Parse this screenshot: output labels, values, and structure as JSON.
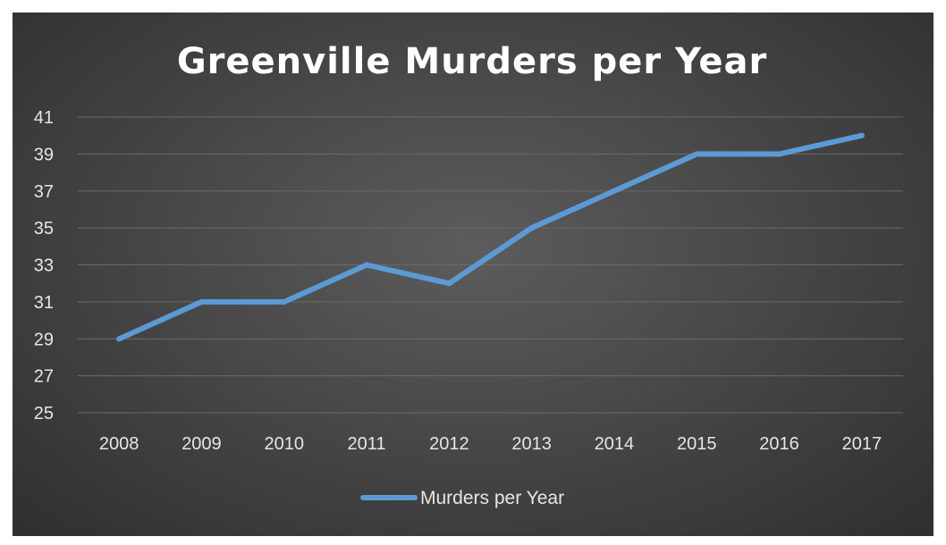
{
  "chart_data": {
    "type": "line",
    "title": "Greenville Murders per Year",
    "x": [
      "2008",
      "2009",
      "2010",
      "2011",
      "2012",
      "2013",
      "2014",
      "2015",
      "2016",
      "2017"
    ],
    "series": [
      {
        "name": "Murders per Year",
        "values": [
          29,
          31,
          31,
          33,
          32,
          35,
          37,
          39,
          39,
          40
        ]
      }
    ],
    "yticks": [
      25,
      27,
      29,
      31,
      33,
      35,
      37,
      39,
      41
    ],
    "ylim": [
      25,
      41
    ],
    "grid": true,
    "legend_position": "bottom",
    "line_color": "#5b9bd5",
    "background_color": "#474747"
  }
}
